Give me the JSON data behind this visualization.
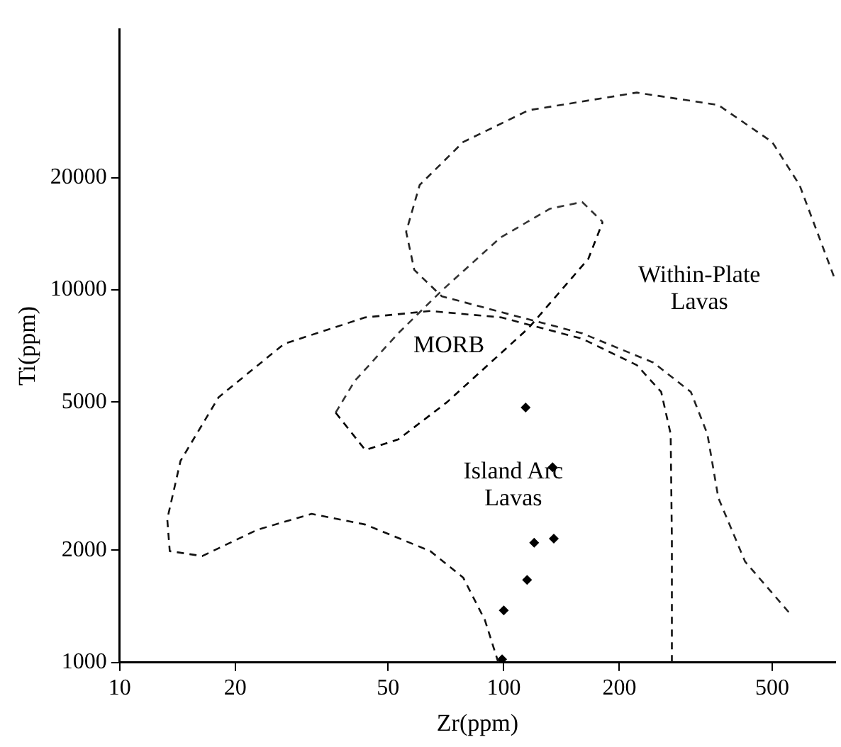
{
  "chart_data": {
    "type": "scatter",
    "xlabel": "Zr(ppm)",
    "ylabel": "Ti(ppm)",
    "log": "xy",
    "grid": false,
    "legend": false,
    "xlim": [
      10,
      730
    ],
    "xticks": [
      10,
      20,
      50,
      100,
      200,
      500
    ],
    "ylim": [
      1000,
      50000
    ],
    "yticks": [
      1000,
      2000,
      5000,
      10000,
      20000
    ],
    "annotations": [
      "MORB",
      "Island Arc\nLavas",
      "Within-Plate\nLavas"
    ],
    "series": [
      {
        "type": "line",
        "color": "#000000",
        "line_style": "dashed",
        "marker": "none",
        "x": [
          36.5,
          43.6,
          53.1,
          71.1,
          116,
          166,
          181
        ],
        "values": [
          4680,
          3715,
          3966,
          4990,
          7890,
          12100,
          15200
        ]
      },
      {
        "type": "line",
        "color": "#333333",
        "line_style": "dashed",
        "marker": "none",
        "x": [
          36.5,
          40.9,
          53.1,
          68.9,
          98,
          132,
          160,
          181
        ],
        "values": [
          4680,
          5690,
          7640,
          9940,
          13800,
          16500,
          17200,
          15200
        ]
      },
      {
        "type": "line",
        "color": "#111111",
        "line_style": "dashed",
        "marker": "none",
        "x": [
          96.8,
          89.3,
          78.4,
          64.4,
          43.6,
          31.6,
          22.8,
          16.4,
          13.5,
          13.3,
          14.4,
          18.1,
          26.8,
          43.6,
          64.4,
          98.4,
          160,
          222,
          257,
          272,
          274,
          274
        ],
        "values": [
          1000,
          1300,
          1690,
          1990,
          2345,
          2505,
          2270,
          1930,
          1990,
          2425,
          3475,
          5150,
          7160,
          8430,
          8770,
          8430,
          7390,
          6280,
          5320,
          4100,
          2130,
          1000
        ]
      },
      {
        "type": "line",
        "color": "#222222",
        "line_style": "dashed",
        "marker": "none",
        "x": [
          552,
          425,
          362,
          339,
          307,
          245,
          160,
          98.4,
          68.9,
          58.5,
          55.7,
          60.4,
          78.4,
          116,
          222,
          362,
          500,
          589,
          730
        ],
        "values": [
          1365,
          1865,
          2765,
          4100,
          5320,
          6380,
          7640,
          8710,
          9610,
          11300,
          14300,
          19100,
          24900,
          30300,
          33800,
          31300,
          24900,
          19100,
          10600
        ]
      },
      {
        "type": "scatter",
        "color": "#000000",
        "marker": "diamond",
        "x": [
          114,
          134,
          120,
          135,
          115,
          100,
          99
        ],
        "values": [
          4830,
          3340,
          2095,
          2150,
          1665,
          1380,
          1020
        ]
      }
    ]
  }
}
